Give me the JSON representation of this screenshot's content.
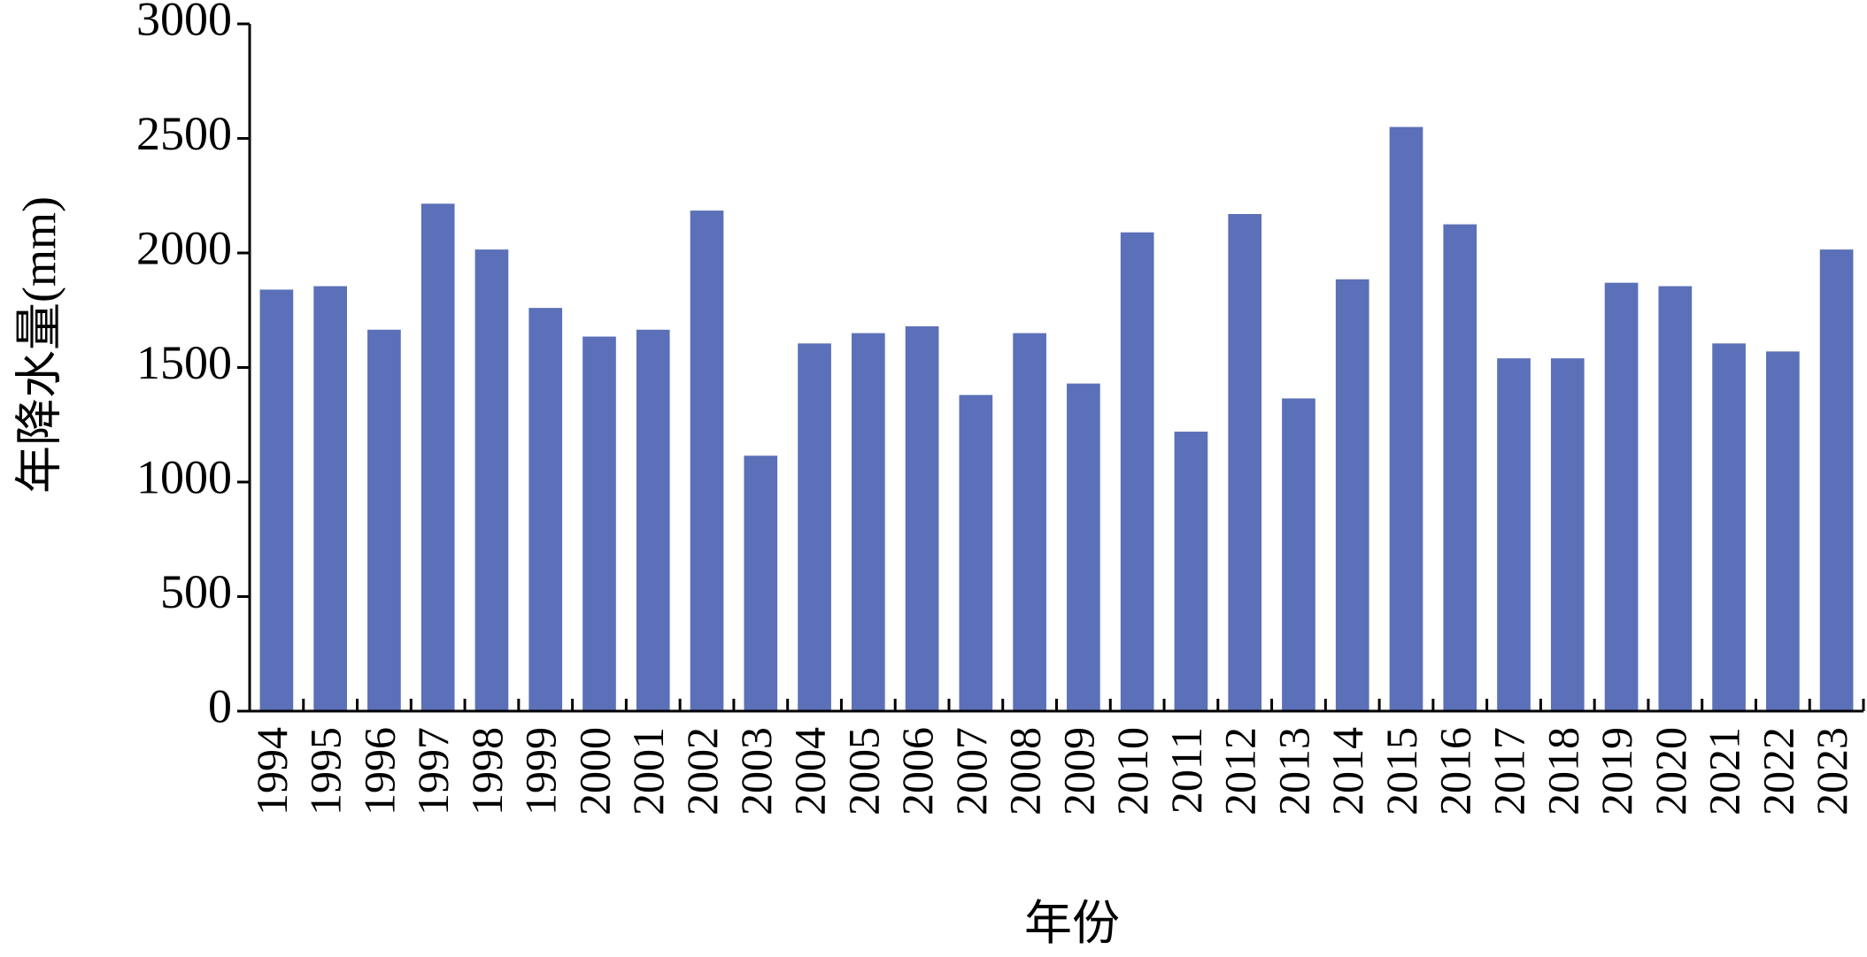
{
  "chart_data": {
    "type": "bar",
    "xlabel": "年份",
    "ylabel": "年降水量(mm)",
    "categories": [
      "1994",
      "1995",
      "1996",
      "1997",
      "1998",
      "1999",
      "2000",
      "2001",
      "2002",
      "2003",
      "2004",
      "2005",
      "2006",
      "2007",
      "2008",
      "2009",
      "2010",
      "2011",
      "2012",
      "2013",
      "2014",
      "2015",
      "2016",
      "2017",
      "2018",
      "2019",
      "2020",
      "2021",
      "2022",
      "2023"
    ],
    "values": [
      1840,
      1855,
      1665,
      2215,
      2015,
      1760,
      1635,
      1665,
      2185,
      1115,
      1605,
      1650,
      1680,
      1380,
      1650,
      1430,
      2090,
      1220,
      2170,
      1365,
      1885,
      2550,
      2125,
      1540,
      1540,
      1870,
      1855,
      1605,
      1570,
      2015
    ],
    "color": "#5b70b8",
    "ylim": [
      0,
      3000
    ],
    "yticks": [
      0,
      500,
      1000,
      1500,
      2000,
      2500,
      3000
    ],
    "grid": false
  }
}
